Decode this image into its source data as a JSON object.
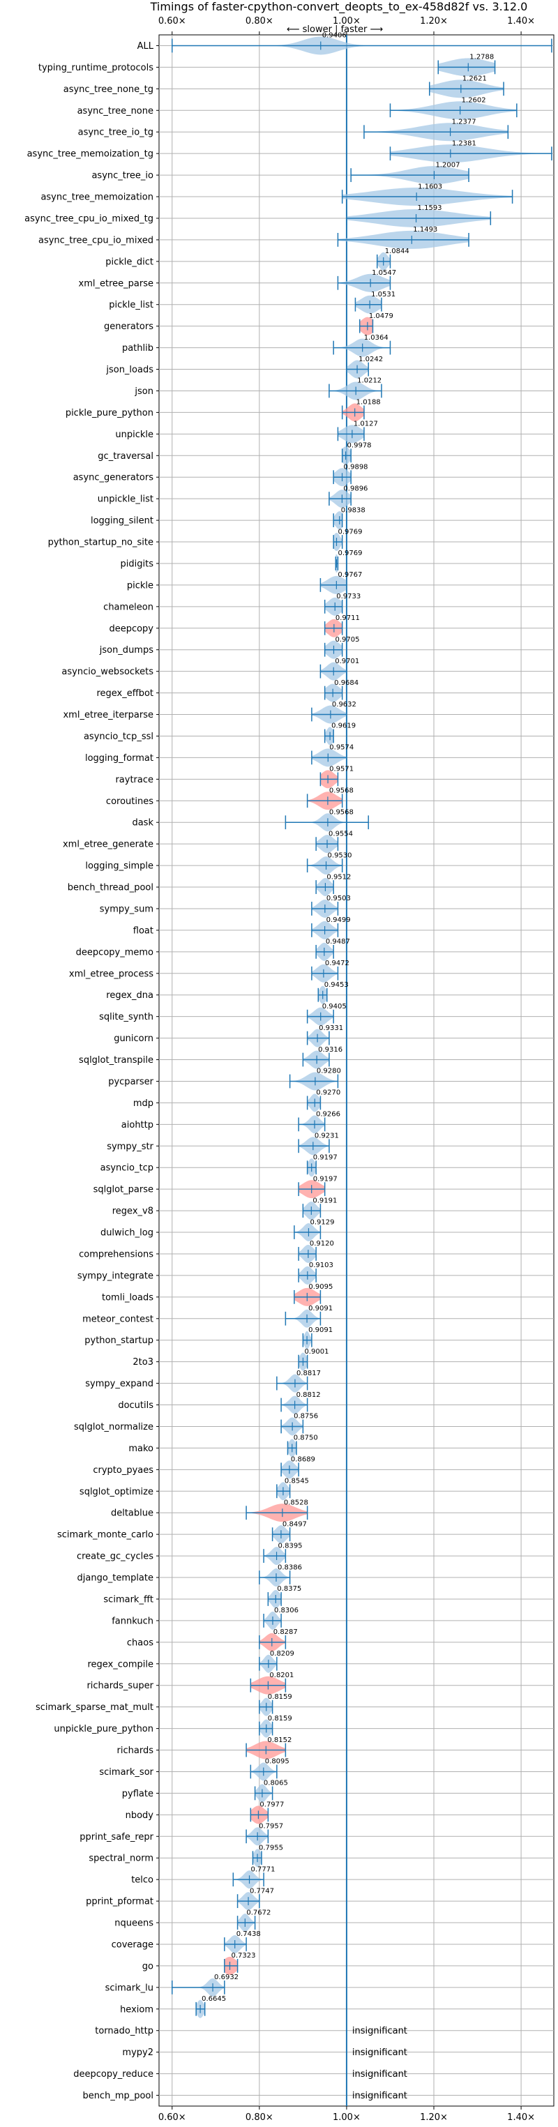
{
  "chart_data": {
    "type": "violin",
    "title": "Timings of faster-cpython-convert_deopts_to_ex-458d82f vs. 3.12.0",
    "direction_label": "⟵ slower | faster ⟶",
    "xlim": [
      0.57,
      1.475
    ],
    "x_ticks": [
      0.6,
      0.8,
      1.0,
      1.2,
      1.4
    ],
    "x_tick_labels": [
      "0.60×",
      "0.80×",
      "1.00×",
      "1.20×",
      "1.40×"
    ],
    "reference_line": 1.0,
    "insignificant_label": "insignificant",
    "colors": {
      "normal": "#1f77b4",
      "significant": "#ff9896",
      "violin_normal": "#a6c8e6",
      "grid": "#b0b0b0"
    },
    "benchmarks": [
      {
        "name": "ALL",
        "value": 0.9406,
        "label": "0.9406",
        "min": 0.6,
        "max": 1.47,
        "spread": 0.04,
        "highlight": false
      },
      {
        "name": "typing_runtime_protocols",
        "value": 1.2788,
        "label": "1.2788",
        "min": 1.21,
        "max": 1.34,
        "spread": 0.05,
        "highlight": false
      },
      {
        "name": "async_tree_none_tg",
        "value": 1.2621,
        "label": "1.2621",
        "min": 1.19,
        "max": 1.36,
        "spread": 0.05,
        "highlight": false
      },
      {
        "name": "async_tree_none",
        "value": 1.2602,
        "label": "1.2602",
        "min": 1.1,
        "max": 1.39,
        "spread": 0.06,
        "highlight": false
      },
      {
        "name": "async_tree_io_tg",
        "value": 1.2377,
        "label": "1.2377",
        "min": 1.04,
        "max": 1.37,
        "spread": 0.07,
        "highlight": false
      },
      {
        "name": "async_tree_memoization_tg",
        "value": 1.2381,
        "label": "1.2381",
        "min": 1.1,
        "max": 1.47,
        "spread": 0.08,
        "highlight": false
      },
      {
        "name": "async_tree_io",
        "value": 1.2007,
        "label": "1.2007",
        "min": 1.01,
        "max": 1.28,
        "spread": 0.06,
        "highlight": false
      },
      {
        "name": "async_tree_memoization",
        "value": 1.1603,
        "label": "1.1603",
        "min": 0.99,
        "max": 1.38,
        "spread": 0.1,
        "highlight": false
      },
      {
        "name": "async_tree_cpu_io_mixed_tg",
        "value": 1.1593,
        "label": "1.1593",
        "min": 1.0,
        "max": 1.33,
        "spread": 0.09,
        "highlight": false
      },
      {
        "name": "async_tree_cpu_io_mixed",
        "value": 1.1493,
        "label": "1.1493",
        "min": 0.98,
        "max": 1.28,
        "spread": 0.08,
        "highlight": false
      },
      {
        "name": "pickle_dict",
        "value": 1.0844,
        "label": "1.0844",
        "min": 1.07,
        "max": 1.1,
        "spread": 0.01,
        "highlight": false
      },
      {
        "name": "xml_etree_parse",
        "value": 1.0547,
        "label": "1.0547",
        "min": 0.98,
        "max": 1.1,
        "spread": 0.03,
        "highlight": false
      },
      {
        "name": "pickle_list",
        "value": 1.0531,
        "label": "1.0531",
        "min": 1.02,
        "max": 1.08,
        "spread": 0.02,
        "highlight": false
      },
      {
        "name": "generators",
        "value": 1.0479,
        "label": "1.0479",
        "min": 1.03,
        "max": 1.06,
        "spread": 0.015,
        "highlight": true
      },
      {
        "name": "pathlib",
        "value": 1.0364,
        "label": "1.0364",
        "min": 0.97,
        "max": 1.1,
        "spread": 0.02,
        "highlight": false
      },
      {
        "name": "json_loads",
        "value": 1.0242,
        "label": "1.0242",
        "min": 1.0,
        "max": 1.05,
        "spread": 0.015,
        "highlight": false
      },
      {
        "name": "json",
        "value": 1.0212,
        "label": "1.0212",
        "min": 0.96,
        "max": 1.08,
        "spread": 0.02,
        "highlight": false
      },
      {
        "name": "pickle_pure_python",
        "value": 1.0188,
        "label": "1.0188",
        "min": 0.99,
        "max": 1.04,
        "spread": 0.015,
        "highlight": true
      },
      {
        "name": "unpickle",
        "value": 1.0127,
        "label": "1.0127",
        "min": 0.98,
        "max": 1.04,
        "spread": 0.02,
        "highlight": false
      },
      {
        "name": "gc_traversal",
        "value": 0.9978,
        "label": "0.9978",
        "min": 0.99,
        "max": 1.01,
        "spread": 0.01,
        "highlight": false
      },
      {
        "name": "async_generators",
        "value": 0.9898,
        "label": "0.9898",
        "min": 0.97,
        "max": 1.01,
        "spread": 0.015,
        "highlight": false
      },
      {
        "name": "unpickle_list",
        "value": 0.9896,
        "label": "0.9896",
        "min": 0.96,
        "max": 1.01,
        "spread": 0.015,
        "highlight": false
      },
      {
        "name": "logging_silent",
        "value": 0.9838,
        "label": "0.9838",
        "min": 0.97,
        "max": 0.99,
        "spread": 0.01,
        "highlight": false
      },
      {
        "name": "python_startup_no_site",
        "value": 0.9769,
        "label": "0.9769",
        "min": 0.97,
        "max": 0.99,
        "spread": 0.008,
        "highlight": false
      },
      {
        "name": "pidigits",
        "value": 0.9769,
        "label": "0.9769",
        "min": 0.975,
        "max": 0.98,
        "spread": 0.005,
        "highlight": false
      },
      {
        "name": "pickle",
        "value": 0.9767,
        "label": "0.9767",
        "min": 0.94,
        "max": 1.0,
        "spread": 0.02,
        "highlight": false
      },
      {
        "name": "chameleon",
        "value": 0.9733,
        "label": "0.9733",
        "min": 0.95,
        "max": 0.99,
        "spread": 0.015,
        "highlight": false
      },
      {
        "name": "deepcopy",
        "value": 0.9711,
        "label": "0.9711",
        "min": 0.95,
        "max": 0.99,
        "spread": 0.015,
        "highlight": true
      },
      {
        "name": "json_dumps",
        "value": 0.9705,
        "label": "0.9705",
        "min": 0.95,
        "max": 0.99,
        "spread": 0.015,
        "highlight": false
      },
      {
        "name": "asyncio_websockets",
        "value": 0.9701,
        "label": "0.9701",
        "min": 0.94,
        "max": 1.0,
        "spread": 0.015,
        "highlight": false
      },
      {
        "name": "regex_effbot",
        "value": 0.9684,
        "label": "0.9684",
        "min": 0.95,
        "max": 0.99,
        "spread": 0.015,
        "highlight": false
      },
      {
        "name": "xml_etree_iterparse",
        "value": 0.9632,
        "label": "0.9632",
        "min": 0.92,
        "max": 1.0,
        "spread": 0.02,
        "highlight": false
      },
      {
        "name": "asyncio_tcp_ssl",
        "value": 0.9619,
        "label": "0.9619",
        "min": 0.95,
        "max": 0.97,
        "spread": 0.008,
        "highlight": false
      },
      {
        "name": "logging_format",
        "value": 0.9574,
        "label": "0.9574",
        "min": 0.92,
        "max": 1.0,
        "spread": 0.02,
        "highlight": false
      },
      {
        "name": "raytrace",
        "value": 0.9571,
        "label": "0.9571",
        "min": 0.94,
        "max": 0.98,
        "spread": 0.015,
        "highlight": true
      },
      {
        "name": "coroutines",
        "value": 0.9568,
        "label": "0.9568",
        "min": 0.91,
        "max": 0.99,
        "spread": 0.02,
        "highlight": true
      },
      {
        "name": "dask",
        "value": 0.9568,
        "label": "0.9568",
        "min": 0.86,
        "max": 1.05,
        "spread": 0.015,
        "highlight": false
      },
      {
        "name": "xml_etree_generate",
        "value": 0.9554,
        "label": "0.9554",
        "min": 0.93,
        "max": 0.98,
        "spread": 0.015,
        "highlight": false
      },
      {
        "name": "logging_simple",
        "value": 0.953,
        "label": "0.9530",
        "min": 0.91,
        "max": 0.99,
        "spread": 0.015,
        "highlight": false
      },
      {
        "name": "bench_thread_pool",
        "value": 0.9512,
        "label": "0.9512",
        "min": 0.93,
        "max": 0.97,
        "spread": 0.012,
        "highlight": false
      },
      {
        "name": "sympy_sum",
        "value": 0.9503,
        "label": "0.9503",
        "min": 0.92,
        "max": 0.98,
        "spread": 0.015,
        "highlight": false
      },
      {
        "name": "float",
        "value": 0.9499,
        "label": "0.9499",
        "min": 0.92,
        "max": 0.98,
        "spread": 0.015,
        "highlight": false
      },
      {
        "name": "deepcopy_memo",
        "value": 0.9487,
        "label": "0.9487",
        "min": 0.93,
        "max": 0.97,
        "spread": 0.012,
        "highlight": false
      },
      {
        "name": "xml_etree_process",
        "value": 0.9472,
        "label": "0.9472",
        "min": 0.92,
        "max": 0.98,
        "spread": 0.015,
        "highlight": false
      },
      {
        "name": "regex_dna",
        "value": 0.9453,
        "label": "0.9453",
        "min": 0.935,
        "max": 0.955,
        "spread": 0.008,
        "highlight": false
      },
      {
        "name": "sqlite_synth",
        "value": 0.9405,
        "label": "0.9405",
        "min": 0.91,
        "max": 0.97,
        "spread": 0.015,
        "highlight": false
      },
      {
        "name": "gunicorn",
        "value": 0.9331,
        "label": "0.9331",
        "min": 0.91,
        "max": 0.96,
        "spread": 0.012,
        "highlight": false
      },
      {
        "name": "sqlglot_transpile",
        "value": 0.9316,
        "label": "0.9316",
        "min": 0.9,
        "max": 0.96,
        "spread": 0.015,
        "highlight": false
      },
      {
        "name": "pycparser",
        "value": 0.928,
        "label": "0.9280",
        "min": 0.87,
        "max": 0.98,
        "spread": 0.02,
        "highlight": false
      },
      {
        "name": "mdp",
        "value": 0.927,
        "label": "0.9270",
        "min": 0.91,
        "max": 0.94,
        "spread": 0.01,
        "highlight": false
      },
      {
        "name": "aiohttp",
        "value": 0.9266,
        "label": "0.9266",
        "min": 0.89,
        "max": 0.95,
        "spread": 0.012,
        "highlight": false
      },
      {
        "name": "sympy_str",
        "value": 0.9231,
        "label": "0.9231",
        "min": 0.89,
        "max": 0.96,
        "spread": 0.015,
        "highlight": false
      },
      {
        "name": "asyncio_tcp",
        "value": 0.9197,
        "label": "0.9197",
        "min": 0.91,
        "max": 0.93,
        "spread": 0.008,
        "highlight": false
      },
      {
        "name": "sqlglot_parse",
        "value": 0.9197,
        "label": "0.9197",
        "min": 0.89,
        "max": 0.95,
        "spread": 0.02,
        "highlight": true
      },
      {
        "name": "regex_v8",
        "value": 0.9191,
        "label": "0.9191",
        "min": 0.9,
        "max": 0.94,
        "spread": 0.012,
        "highlight": false
      },
      {
        "name": "dulwich_log",
        "value": 0.9129,
        "label": "0.9129",
        "min": 0.88,
        "max": 0.94,
        "spread": 0.012,
        "highlight": false
      },
      {
        "name": "comprehensions",
        "value": 0.912,
        "label": "0.9120",
        "min": 0.89,
        "max": 0.93,
        "spread": 0.012,
        "highlight": false
      },
      {
        "name": "sympy_integrate",
        "value": 0.9103,
        "label": "0.9103",
        "min": 0.89,
        "max": 0.93,
        "spread": 0.012,
        "highlight": false
      },
      {
        "name": "tomli_loads",
        "value": 0.9095,
        "label": "0.9095",
        "min": 0.88,
        "max": 0.94,
        "spread": 0.02,
        "highlight": true
      },
      {
        "name": "meteor_contest",
        "value": 0.9091,
        "label": "0.9091",
        "min": 0.86,
        "max": 0.94,
        "spread": 0.012,
        "highlight": false
      },
      {
        "name": "python_startup",
        "value": 0.9091,
        "label": "0.9091",
        "min": 0.9,
        "max": 0.92,
        "spread": 0.006,
        "highlight": false
      },
      {
        "name": "2to3",
        "value": 0.9001,
        "label": "0.9001",
        "min": 0.89,
        "max": 0.91,
        "spread": 0.008,
        "highlight": false
      },
      {
        "name": "sympy_expand",
        "value": 0.8817,
        "label": "0.8817",
        "min": 0.84,
        "max": 0.91,
        "spread": 0.012,
        "highlight": false
      },
      {
        "name": "docutils",
        "value": 0.8812,
        "label": "0.8812",
        "min": 0.85,
        "max": 0.91,
        "spread": 0.012,
        "highlight": false
      },
      {
        "name": "sqlglot_normalize",
        "value": 0.8756,
        "label": "0.8756",
        "min": 0.85,
        "max": 0.9,
        "spread": 0.012,
        "highlight": false
      },
      {
        "name": "mako",
        "value": 0.875,
        "label": "0.8750",
        "min": 0.865,
        "max": 0.885,
        "spread": 0.008,
        "highlight": false
      },
      {
        "name": "crypto_pyaes",
        "value": 0.8689,
        "label": "0.8689",
        "min": 0.85,
        "max": 0.89,
        "spread": 0.012,
        "highlight": false
      },
      {
        "name": "sqlglot_optimize",
        "value": 0.8545,
        "label": "0.8545",
        "min": 0.84,
        "max": 0.87,
        "spread": 0.01,
        "highlight": false
      },
      {
        "name": "deltablue",
        "value": 0.8528,
        "label": "0.8528",
        "min": 0.77,
        "max": 0.91,
        "spread": 0.03,
        "highlight": true
      },
      {
        "name": "scimark_monte_carlo",
        "value": 0.8497,
        "label": "0.8497",
        "min": 0.83,
        "max": 0.87,
        "spread": 0.012,
        "highlight": false
      },
      {
        "name": "create_gc_cycles",
        "value": 0.8395,
        "label": "0.8395",
        "min": 0.81,
        "max": 0.86,
        "spread": 0.012,
        "highlight": false
      },
      {
        "name": "django_template",
        "value": 0.8386,
        "label": "0.8386",
        "min": 0.8,
        "max": 0.87,
        "spread": 0.012,
        "highlight": false
      },
      {
        "name": "scimark_fft",
        "value": 0.8375,
        "label": "0.8375",
        "min": 0.82,
        "max": 0.85,
        "spread": 0.01,
        "highlight": false
      },
      {
        "name": "fannkuch",
        "value": 0.8306,
        "label": "0.8306",
        "min": 0.81,
        "max": 0.85,
        "spread": 0.01,
        "highlight": false
      },
      {
        "name": "chaos",
        "value": 0.8287,
        "label": "0.8287",
        "min": 0.8,
        "max": 0.86,
        "spread": 0.015,
        "highlight": true
      },
      {
        "name": "regex_compile",
        "value": 0.8209,
        "label": "0.8209",
        "min": 0.8,
        "max": 0.84,
        "spread": 0.01,
        "highlight": false
      },
      {
        "name": "richards_super",
        "value": 0.8201,
        "label": "0.8201",
        "min": 0.78,
        "max": 0.86,
        "spread": 0.025,
        "highlight": true
      },
      {
        "name": "scimark_sparse_mat_mult",
        "value": 0.8159,
        "label": "0.8159",
        "min": 0.8,
        "max": 0.83,
        "spread": 0.01,
        "highlight": false
      },
      {
        "name": "unpickle_pure_python",
        "value": 0.8159,
        "label": "0.8159",
        "min": 0.8,
        "max": 0.83,
        "spread": 0.01,
        "highlight": false
      },
      {
        "name": "richards",
        "value": 0.8152,
        "label": "0.8152",
        "min": 0.77,
        "max": 0.86,
        "spread": 0.025,
        "highlight": true
      },
      {
        "name": "scimark_sor",
        "value": 0.8095,
        "label": "0.8095",
        "min": 0.78,
        "max": 0.84,
        "spread": 0.012,
        "highlight": false
      },
      {
        "name": "pyflate",
        "value": 0.8065,
        "label": "0.8065",
        "min": 0.79,
        "max": 0.83,
        "spread": 0.01,
        "highlight": false
      },
      {
        "name": "nbody",
        "value": 0.7977,
        "label": "0.7977",
        "min": 0.78,
        "max": 0.82,
        "spread": 0.015,
        "highlight": true
      },
      {
        "name": "pprint_safe_repr",
        "value": 0.7957,
        "label": "0.7957",
        "min": 0.77,
        "max": 0.82,
        "spread": 0.012,
        "highlight": false
      },
      {
        "name": "spectral_norm",
        "value": 0.7955,
        "label": "0.7955",
        "min": 0.785,
        "max": 0.805,
        "spread": 0.008,
        "highlight": false
      },
      {
        "name": "telco",
        "value": 0.7771,
        "label": "0.7771",
        "min": 0.74,
        "max": 0.81,
        "spread": 0.012,
        "highlight": false
      },
      {
        "name": "pprint_pformat",
        "value": 0.7747,
        "label": "0.7747",
        "min": 0.75,
        "max": 0.8,
        "spread": 0.012,
        "highlight": false
      },
      {
        "name": "nqueens",
        "value": 0.7672,
        "label": "0.7672",
        "min": 0.75,
        "max": 0.79,
        "spread": 0.01,
        "highlight": false
      },
      {
        "name": "coverage",
        "value": 0.7438,
        "label": "0.7438",
        "min": 0.72,
        "max": 0.77,
        "spread": 0.012,
        "highlight": false
      },
      {
        "name": "go",
        "value": 0.7323,
        "label": "0.7323",
        "min": 0.72,
        "max": 0.75,
        "spread": 0.015,
        "highlight": true
      },
      {
        "name": "scimark_lu",
        "value": 0.6932,
        "label": "0.6932",
        "min": 0.6,
        "max": 0.72,
        "spread": 0.012,
        "highlight": false
      },
      {
        "name": "hexiom",
        "value": 0.6645,
        "label": "0.6645",
        "min": 0.655,
        "max": 0.675,
        "spread": 0.008,
        "highlight": false
      },
      {
        "name": "tornado_http",
        "insignificant": true
      },
      {
        "name": "mypy2",
        "insignificant": true
      },
      {
        "name": "deepcopy_reduce",
        "insignificant": true
      },
      {
        "name": "bench_mp_pool",
        "insignificant": true
      }
    ]
  }
}
